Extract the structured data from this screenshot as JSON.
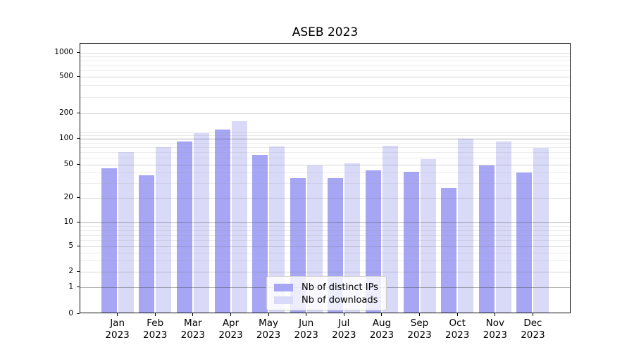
{
  "title": "ASEB 2023",
  "chart_data": {
    "type": "bar",
    "title": "ASEB 2023",
    "categories": [
      "Jan 2023",
      "Feb 2023",
      "Mar 2023",
      "Apr 2023",
      "May 2023",
      "Jun 2023",
      "Jul 2023",
      "Aug 2023",
      "Sep 2023",
      "Oct 2023",
      "Nov 2023",
      "Dec 2023"
    ],
    "series": [
      {
        "name": "Nb of distinct IPs",
        "color": "#a6a6f4",
        "values": [
          45,
          37,
          93,
          128,
          64,
          34,
          34,
          42,
          41,
          26,
          48,
          40
        ]
      },
      {
        "name": "Nb of downloads",
        "color": "#d9d9f8",
        "values": [
          70,
          79,
          115,
          160,
          81,
          48,
          51,
          83,
          58,
          100,
          92,
          78
        ]
      }
    ],
    "y_axis": {
      "scale": "symlog",
      "ticks": [
        0,
        1,
        2,
        5,
        10,
        20,
        50,
        100,
        200,
        500,
        1000
      ],
      "range": [
        0,
        1400
      ]
    },
    "legend": {
      "position": "lower center"
    },
    "grid": "both"
  }
}
